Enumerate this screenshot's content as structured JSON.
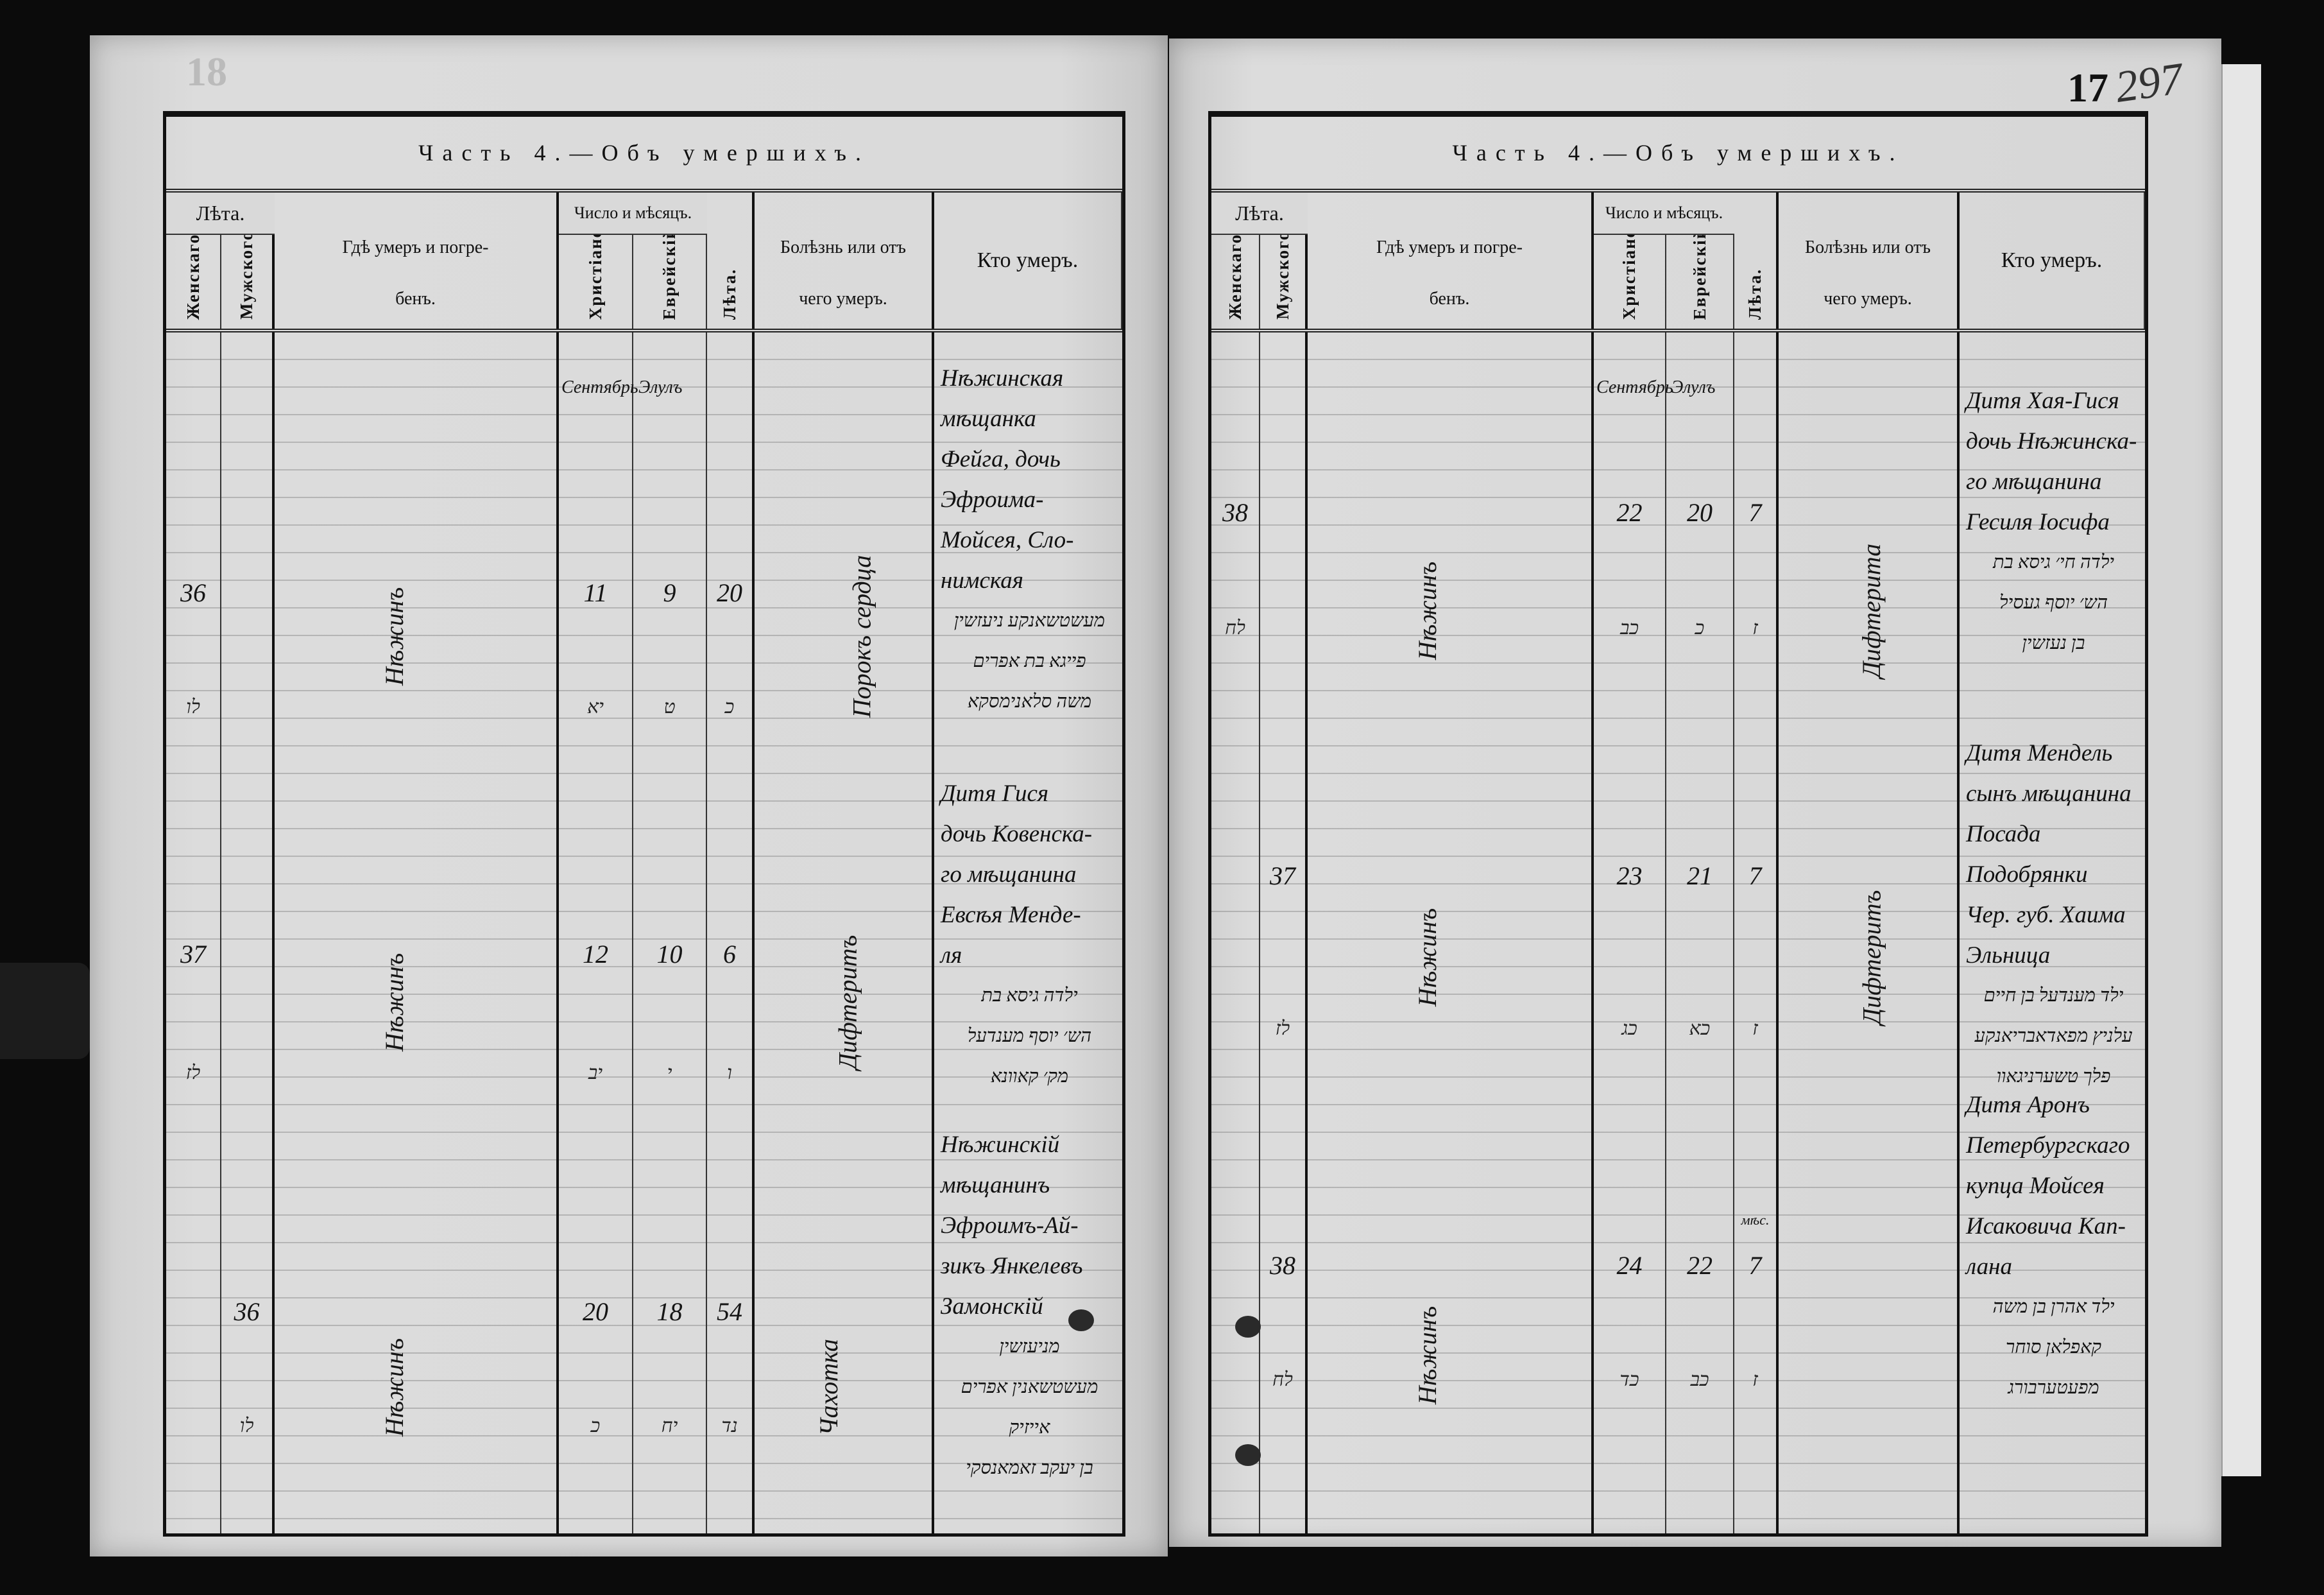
{
  "document": {
    "left_page": {
      "page_number": "18",
      "title": "Часть 4.—Объ умершихъ.",
      "headers": {
        "age_group": "Лѣта.",
        "female": "Женскаго.",
        "male": "Мужского.",
        "place_top": "Гдѣ умеръ и погре-",
        "place_bottom": "бенъ.",
        "date_group": "Число и мѣсяцъ.",
        "christian": "Христіанскій.",
        "jewish": "Еврейскій.",
        "age": "Лѣта.",
        "cause_top": "Болѣзнь или отъ",
        "cause_bottom": "чего умеръ.",
        "who": "Кто умеръ."
      },
      "month_christian": "Сентябрь",
      "month_jewish": "Элулъ",
      "entries": [
        {
          "female": "36",
          "male": "",
          "female_heb": "לו",
          "male_heb": "",
          "place": "Нѣжинъ",
          "christian_day": "11",
          "jewish_day": "9",
          "age": "20",
          "christian_day_heb": "יא",
          "jewish_day_heb": "ט",
          "age_heb": "כ",
          "cause": "Порокъ сердца",
          "who": [
            "Нѣжинская",
            "мѣщанка",
            "Фейга, дочь",
            "Эфроима-",
            "Мойсея, Сло-",
            "нимская"
          ],
          "who_heb": [
            "מעשטשאנקע ניעזשין",
            "פייגא בת אפרים",
            "משה סלאנימסקא"
          ]
        },
        {
          "female": "37",
          "male": "",
          "female_heb": "לז",
          "male_heb": "",
          "place": "Нѣжинъ",
          "christian_day": "12",
          "jewish_day": "10",
          "age": "6",
          "christian_day_heb": "יב",
          "jewish_day_heb": "י",
          "age_heb": "ו",
          "cause": "Дифтеритъ",
          "who": [
            "Дитя Гися",
            "дочь Ковенска-",
            "го мѣщанина",
            "Евсѣя Менде-",
            "ля"
          ],
          "who_heb": [
            "ילדה גיסא בת",
            "הש׳ יוסף מענדעל",
            "מק׳ קאוונא"
          ]
        },
        {
          "female": "",
          "male": "36",
          "female_heb": "",
          "male_heb": "לו",
          "place": "Нѣжинъ",
          "christian_day": "20",
          "jewish_day": "18",
          "age": "54",
          "christian_day_heb": "כ",
          "jewish_day_heb": "יח",
          "age_heb": "נד",
          "cause": "Чахотка",
          "who": [
            "Нѣжинскій",
            "мѣщанинъ",
            "Эфроимъ-Ай-",
            "зикъ Янкелевъ",
            "Замонскій"
          ],
          "who_heb": [
            "מניעזשין",
            "מעשטשאנין אפרים אייזיק",
            "בן יעקב זאמאנסקי"
          ]
        }
      ]
    },
    "right_page": {
      "page_number": "17",
      "page_number_handwritten": "297",
      "title": "Часть 4.—Объ умершихъ.",
      "headers": {
        "age_group": "Лѣта.",
        "female": "Женскаго.",
        "male": "Мужского.",
        "place_top": "Гдѣ умеръ и погре-",
        "place_bottom": "бенъ.",
        "date_group": "Число и мѣсяцъ.",
        "christian": "Христіанскій.",
        "jewish": "Еврейскій.",
        "age": "Лѣта.",
        "cause_top": "Болѣзнь или отъ",
        "cause_bottom": "чего умеръ.",
        "who": "Кто умеръ."
      },
      "month_christian": "Сентябрь",
      "month_jewish": "Элулъ",
      "entries": [
        {
          "female": "38",
          "male": "",
          "female_heb": "לח",
          "male_heb": "",
          "place": "Нѣжинъ",
          "christian_day": "22",
          "jewish_day": "20",
          "age": "7",
          "christian_day_heb": "כב",
          "jewish_day_heb": "כ",
          "age_heb": "ז",
          "cause": "Дифтерита",
          "who": [
            "Дитя Хая-Гися",
            "дочь Нѣжинска-",
            "го мѣщанина",
            "Гесиля Іосифа"
          ],
          "who_heb": [
            "ילדה חי׳ גיסא בת",
            "הש׳ יוסף געסיל",
            "בן נעזשין"
          ]
        },
        {
          "female": "",
          "male": "37",
          "female_heb": "",
          "male_heb": "לז",
          "place": "Нѣжинъ",
          "christian_day": "23",
          "jewish_day": "21",
          "age": "7",
          "christian_day_heb": "כג",
          "jewish_day_heb": "כא",
          "age_heb": "ז",
          "cause": "Дифтеритъ",
          "who": [
            "Дитя Мендель",
            "сынъ мѣщанина",
            "Посада Подобрянки",
            "Чер. губ. Хаима",
            "Эльница"
          ],
          "who_heb": [
            "ילד מענדעל בן חיים",
            "עלניץ מפאדאבריאנקע",
            "פלך טשערניגאוו"
          ]
        },
        {
          "female": "",
          "male": "38",
          "female_heb": "",
          "male_heb": "לח",
          "place": "Нѣжинъ",
          "christian_day": "24",
          "jewish_day": "22",
          "age": "7",
          "age_unit": "мѣс.",
          "christian_day_heb": "כד",
          "jewish_day_heb": "כב",
          "age_heb": "ז",
          "cause": "",
          "who": [
            "Дитя Аронъ",
            "Петербургскаго",
            "купца Мойсея",
            "Исаковича Кап-",
            "лана"
          ],
          "who_heb": [
            "ילד אהרן בן משה",
            "קאפלאן סוחר",
            "מפעטערבורג"
          ]
        }
      ]
    }
  }
}
